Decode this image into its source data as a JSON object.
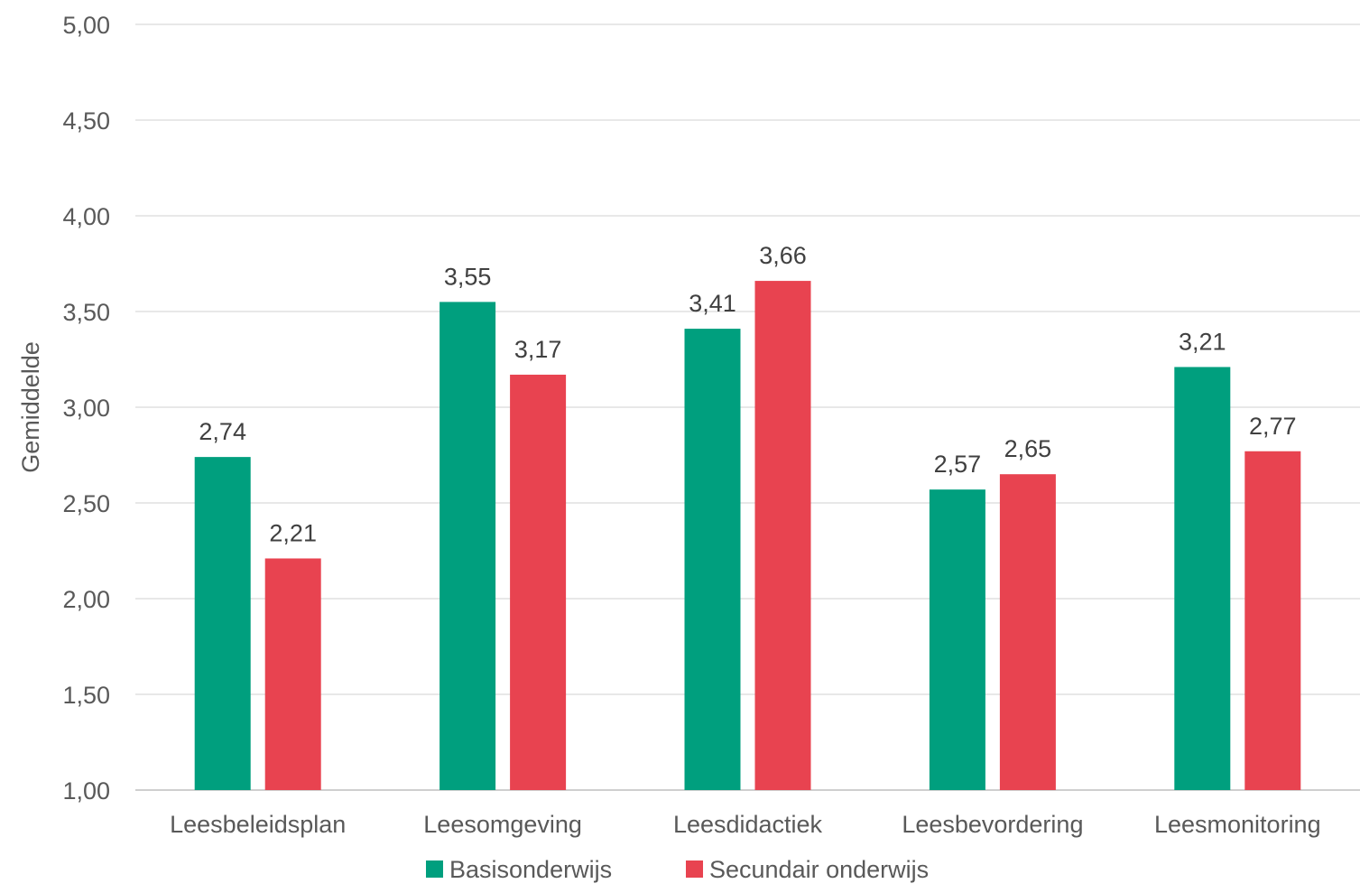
{
  "chart_data": {
    "type": "bar",
    "title": "",
    "xlabel": "",
    "ylabel": "Gemiddelde",
    "ylim": [
      1.0,
      5.0
    ],
    "yticks": [
      "1,00",
      "1,50",
      "2,00",
      "2,50",
      "3,00",
      "3,50",
      "4,00",
      "4,50",
      "5,00"
    ],
    "categories": [
      "Leesbeleidsplan",
      "Leesomgeving",
      "Leesdidactiek",
      "Leesbevordering",
      "Leesmonitoring"
    ],
    "series": [
      {
        "name": "Basisonderwijs",
        "color": "#009F7E",
        "values": [
          2.74,
          3.55,
          3.41,
          2.57,
          3.21
        ],
        "labels": [
          "2,74",
          "3,55",
          "3,41",
          "2,57",
          "3,21"
        ]
      },
      {
        "name": "Secundair onderwijs",
        "color": "#E84350",
        "values": [
          2.21,
          3.17,
          3.66,
          2.65,
          2.77
        ],
        "labels": [
          "2,21",
          "3,17",
          "3,66",
          "2,65",
          "2,77"
        ]
      }
    ],
    "grid": true,
    "gridColor": "#d9d9d9",
    "legend": "bottom-center"
  }
}
